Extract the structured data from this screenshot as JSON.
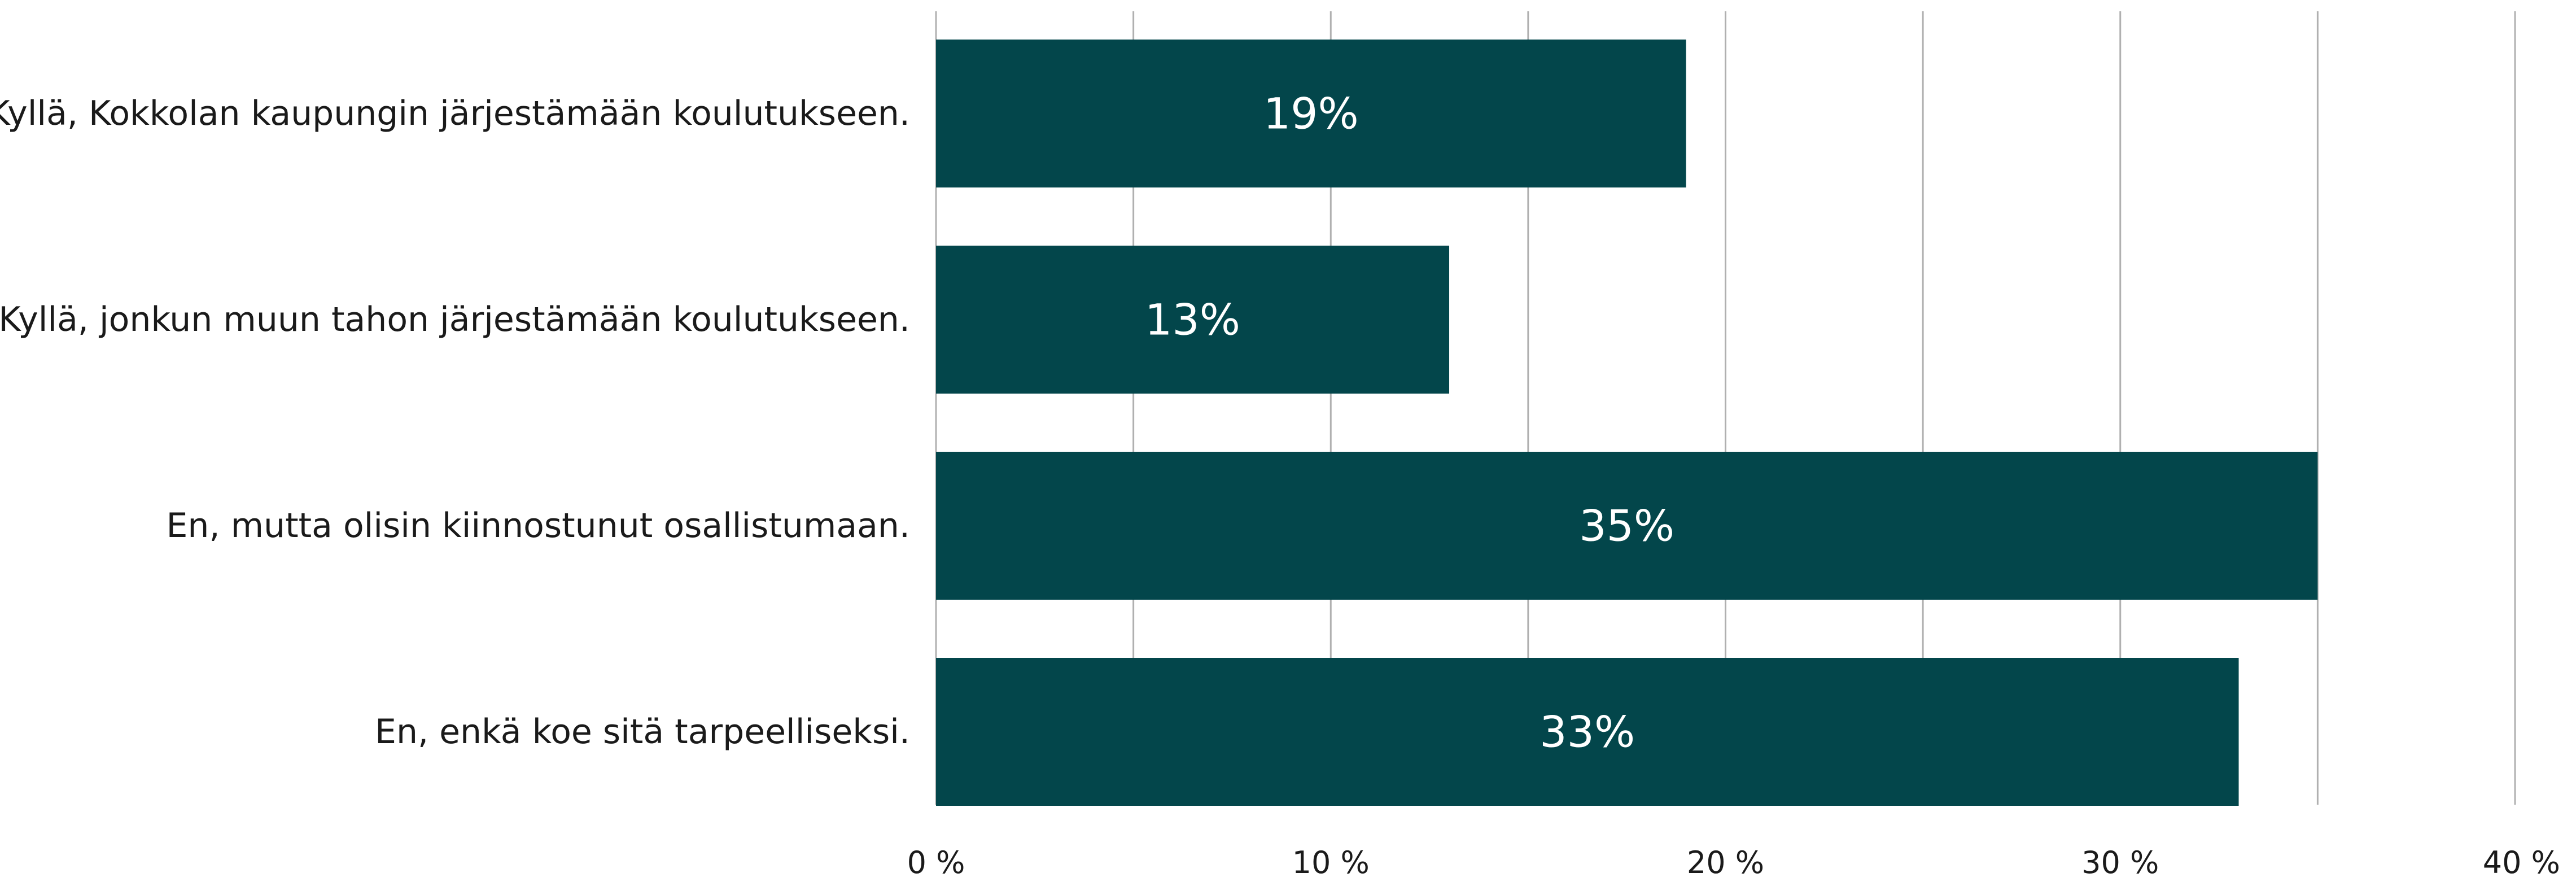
{
  "chart_data": {
    "type": "bar",
    "orientation": "horizontal",
    "categories": [
      "Kyllä, Kokkolan kaupungin järjestämään koulutukseen.",
      "Kyllä, jonkun muun tahon järjestämään koulutukseen.",
      "En, mutta olisin kiinnostunut osallistumaan.",
      "En, enkä koe sitä tarpeelliseksi."
    ],
    "values": [
      19,
      13,
      35,
      33
    ],
    "data_labels": [
      "19%",
      "13%",
      "35%",
      "33%"
    ],
    "xlim": [
      0,
      40
    ],
    "x_ticks": [
      0,
      10,
      20,
      30,
      40
    ],
    "x_tick_labels": [
      "0 %",
      "10 %",
      "20 %",
      "30 %",
      "40 %"
    ],
    "gridlines": [
      0,
      5,
      10,
      15,
      20,
      25,
      30,
      35,
      40
    ],
    "grid": true,
    "legend": "none",
    "bar_color": "#03464B",
    "label_color": "#FFFFFF"
  }
}
